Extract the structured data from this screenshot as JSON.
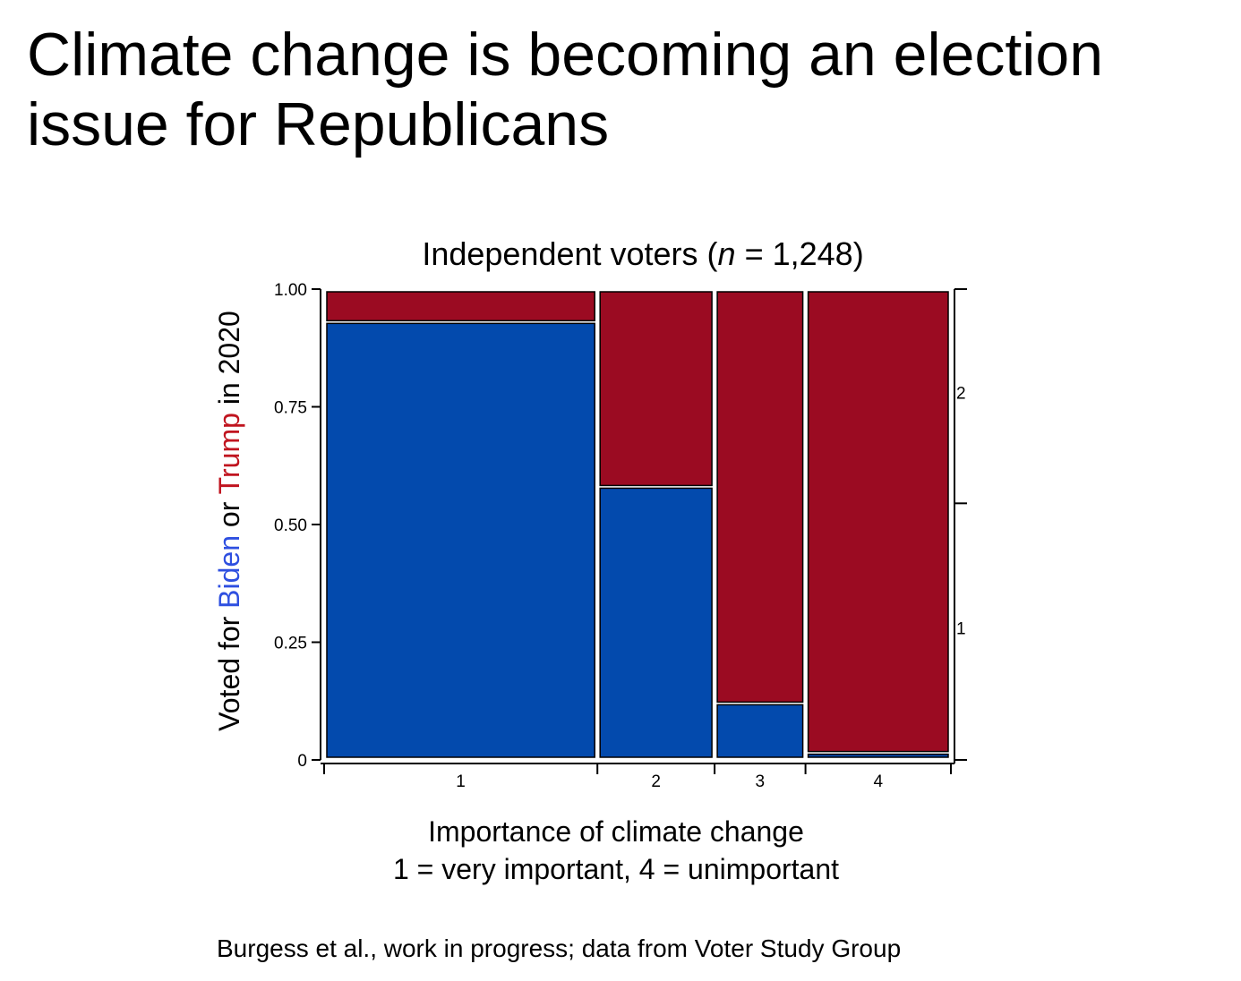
{
  "slide": {
    "title_line1": "Climate change is becoming an election",
    "title_line2": "issue for Republicans",
    "source": "Burgess et al., work in progress; data from Voter Study Group"
  },
  "chart_data": {
    "type": "mosaic",
    "title_prefix": "Independent voters (",
    "title_n": "n",
    "title_suffix": " = 1,248)",
    "ylabel_parts": [
      "Voted for ",
      "Biden",
      " or ",
      "Trump",
      " in 2020"
    ],
    "xlabel_line1": "Importance of climate change",
    "xlabel_line2": "1 = very important, 4 = unimportant",
    "ylim": [
      0,
      1
    ],
    "y_ticks": [
      {
        "value": 0,
        "label": "0"
      },
      {
        "value": 0.25,
        "label": "0.25"
      },
      {
        "value": 0.5,
        "label": "0.50"
      },
      {
        "value": 0.75,
        "label": "0.75"
      },
      {
        "value": 1,
        "label": "1.00"
      }
    ],
    "categories": [
      "1",
      "2",
      "3",
      "4"
    ],
    "column_widths": [
      0.436,
      0.187,
      0.145,
      0.232
    ],
    "series": [
      {
        "name": "Biden",
        "color": "#034aad",
        "values": [
          0.93,
          0.58,
          0.12,
          0.015
        ]
      },
      {
        "name": "Trump",
        "color": "#9b0b22",
        "values": [
          0.07,
          0.42,
          0.88,
          0.985
        ]
      }
    ],
    "right_axis_labels": [
      {
        "label": "1",
        "position": 0.28
      },
      {
        "label": "2",
        "position": 0.78
      }
    ],
    "right_axis_boundary": 0.545
  }
}
